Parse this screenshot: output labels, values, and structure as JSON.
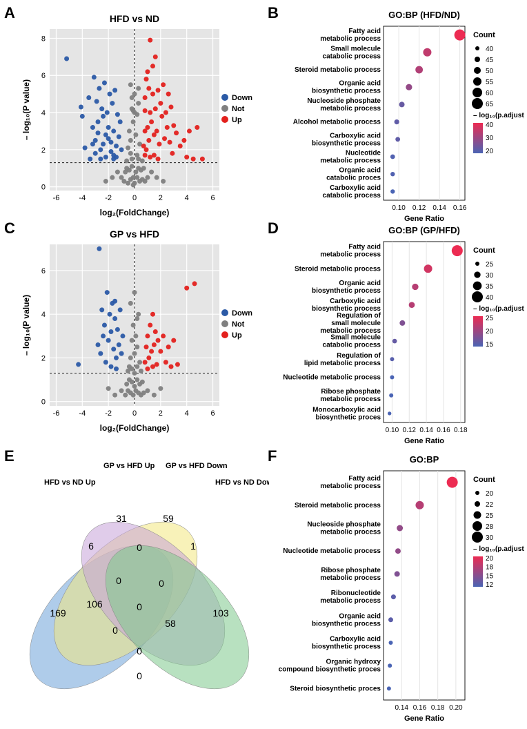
{
  "panelA": {
    "letter": "A",
    "title": "HFD vs ND",
    "xlabel": "log₂(FoldChange)",
    "ylabel": "– log₁₀(P value)",
    "xlim": [
      -6.5,
      6.5
    ],
    "ylim": [
      -0.2,
      8.5
    ],
    "xticks": [
      -6,
      -4,
      -2,
      0,
      2,
      4,
      6
    ],
    "yticks": [
      0,
      2,
      4,
      6,
      8
    ],
    "grid_color": "#ffffff",
    "background_color": "#e5e5e5",
    "threshold_y": 1.3,
    "threshold_x": 0,
    "colors": {
      "Down": "#2b5aa6",
      "Not": "#808080",
      "Up": "#e3211d"
    },
    "legend": [
      "Down",
      "Not",
      "Up"
    ],
    "points": {
      "Down": [
        [
          -5.2,
          6.9
        ],
        [
          -4.1,
          4.3
        ],
        [
          -4.0,
          3.8
        ],
        [
          -3.8,
          2.1
        ],
        [
          -3.5,
          4.8
        ],
        [
          -3.2,
          3.2
        ],
        [
          -3.1,
          5.9
        ],
        [
          -3.0,
          2.5
        ],
        [
          -2.9,
          4.6
        ],
        [
          -2.8,
          3.5
        ],
        [
          -2.7,
          5.3
        ],
        [
          -2.6,
          2.0
        ],
        [
          -2.5,
          4.2
        ],
        [
          -2.4,
          3.8
        ],
        [
          -2.3,
          5.6
        ],
        [
          -2.2,
          2.8
        ],
        [
          -2.1,
          4.0
        ],
        [
          -2.0,
          3.2
        ],
        [
          -1.9,
          5.0
        ],
        [
          -1.8,
          2.4
        ],
        [
          -1.7,
          4.5
        ],
        [
          -1.6,
          3.0
        ],
        [
          -1.5,
          5.2
        ],
        [
          -1.4,
          2.2
        ],
        [
          -1.3,
          3.9
        ],
        [
          -1.2,
          2.7
        ],
        [
          -1.1,
          3.5
        ],
        [
          -1.0,
          2.0
        ],
        [
          -1.6,
          1.7
        ],
        [
          -2.2,
          1.6
        ],
        [
          -2.6,
          1.5
        ],
        [
          -3.0,
          1.8
        ],
        [
          -3.4,
          1.5
        ],
        [
          -1.8,
          1.9
        ],
        [
          -1.4,
          1.6
        ],
        [
          -2.0,
          2.6
        ],
        [
          -2.4,
          2.3
        ],
        [
          -2.8,
          2.9
        ],
        [
          -3.2,
          2.3
        ],
        [
          -1.6,
          1.5
        ]
      ],
      "Not": [
        [
          -0.8,
          0.3
        ],
        [
          -0.7,
          0.8
        ],
        [
          -0.6,
          1.0
        ],
        [
          -0.5,
          0.2
        ],
        [
          -0.4,
          0.9
        ],
        [
          -0.3,
          0.4
        ],
        [
          -0.2,
          1.1
        ],
        [
          -0.1,
          0.5
        ],
        [
          0.0,
          0.2
        ],
        [
          0.1,
          0.8
        ],
        [
          0.2,
          0.5
        ],
        [
          0.3,
          1.0
        ],
        [
          0.4,
          0.3
        ],
        [
          0.5,
          0.9
        ],
        [
          0.6,
          0.4
        ],
        [
          0.7,
          1.0
        ],
        [
          0.8,
          0.3
        ],
        [
          -0.5,
          2.1
        ],
        [
          -0.4,
          3.0
        ],
        [
          -0.3,
          2.5
        ],
        [
          -0.2,
          4.2
        ],
        [
          -0.1,
          3.5
        ],
        [
          0.0,
          5.0
        ],
        [
          0.1,
          2.8
        ],
        [
          0.2,
          3.9
        ],
        [
          0.3,
          4.5
        ],
        [
          0.4,
          2.3
        ],
        [
          -0.2,
          1.5
        ],
        [
          0.2,
          1.7
        ],
        [
          -0.3,
          1.8
        ],
        [
          0.3,
          1.5
        ],
        [
          -0.6,
          1.4
        ],
        [
          0.6,
          1.4
        ],
        [
          -1.0,
          0.5
        ],
        [
          1.0,
          0.5
        ],
        [
          -1.3,
          0.8
        ],
        [
          1.3,
          0.8
        ],
        [
          -1.7,
          0.5
        ],
        [
          1.7,
          0.5
        ],
        [
          -2.2,
          0.3
        ],
        [
          2.2,
          0.3
        ],
        [
          -0.1,
          0.1
        ],
        [
          0.0,
          4.0
        ],
        [
          -0.3,
          5.5
        ],
        [
          0.3,
          5.3
        ],
        [
          -0.2,
          4.8
        ],
        [
          -0.1,
          4.1
        ]
      ],
      "Up": [
        [
          0.9,
          2.0
        ],
        [
          1.0,
          3.2
        ],
        [
          1.1,
          2.5
        ],
        [
          1.2,
          4.0
        ],
        [
          1.3,
          3.5
        ],
        [
          1.4,
          5.0
        ],
        [
          1.5,
          2.8
        ],
        [
          1.6,
          4.2
        ],
        [
          1.7,
          3.0
        ],
        [
          1.8,
          5.2
        ],
        [
          1.9,
          2.3
        ],
        [
          2.0,
          4.5
        ],
        [
          2.1,
          3.8
        ],
        [
          2.2,
          5.5
        ],
        [
          2.3,
          2.6
        ],
        [
          2.4,
          4.0
        ],
        [
          2.5,
          3.2
        ],
        [
          2.6,
          5.0
        ],
        [
          2.7,
          2.4
        ],
        [
          2.8,
          4.3
        ],
        [
          2.9,
          1.8
        ],
        [
          3.0,
          3.3
        ],
        [
          3.2,
          2.9
        ],
        [
          3.5,
          2.2
        ],
        [
          3.8,
          2.5
        ],
        [
          4.0,
          1.6
        ],
        [
          4.2,
          3.0
        ],
        [
          4.5,
          1.5
        ],
        [
          4.8,
          3.2
        ],
        [
          5.2,
          1.5
        ],
        [
          1.2,
          1.6
        ],
        [
          1.5,
          1.7
        ],
        [
          1.8,
          1.5
        ],
        [
          0.8,
          4.8
        ],
        [
          0.9,
          5.8
        ],
        [
          1.0,
          6.2
        ],
        [
          1.1,
          5.3
        ],
        [
          0.8,
          3.0
        ],
        [
          0.8,
          4.1
        ],
        [
          1.6,
          7.0
        ],
        [
          1.2,
          7.9
        ],
        [
          1.4,
          6.5
        ],
        [
          0.7,
          2.2
        ],
        [
          0.8,
          1.7
        ]
      ]
    }
  },
  "panelB": {
    "letter": "B",
    "title": "GO:BP (HFD/ND)",
    "xlabel": "Gene Ratio",
    "xlim": [
      0.085,
      0.165
    ],
    "xticks": [
      0.1,
      0.12,
      0.14,
      0.16
    ],
    "count_legend": {
      "label": "Count",
      "values": [
        40,
        45,
        50,
        55,
        60,
        65
      ]
    },
    "color_legend": {
      "label": "– log₁₀(p.adjust)",
      "values": [
        40,
        30,
        20
      ],
      "low": "#4a64b4",
      "high": "#ec2b52"
    },
    "terms": [
      {
        "label": "Fatty acid\nmetabolic process",
        "x": 0.16,
        "count": 65,
        "logp": 40
      },
      {
        "label": "Small molecule\ncatabolic process",
        "x": 0.128,
        "count": 55,
        "logp": 34
      },
      {
        "label": "Steroid metabolic process",
        "x": 0.12,
        "count": 52,
        "logp": 32
      },
      {
        "label": "Organic acid\nbiosynthetic process",
        "x": 0.11,
        "count": 48,
        "logp": 28
      },
      {
        "label": "Nucleoside phosphate\nmetabolic process",
        "x": 0.103,
        "count": 45,
        "logp": 22
      },
      {
        "label": "Alcohol metabolic process",
        "x": 0.098,
        "count": 43,
        "logp": 21
      },
      {
        "label": "Carboxylic acid\nbiosynthetic process",
        "x": 0.099,
        "count": 42,
        "logp": 21
      },
      {
        "label": "Nucleotide\nmetabolic process",
        "x": 0.094,
        "count": 42,
        "logp": 19
      },
      {
        "label": "Organic acid\ncatabolic proces",
        "x": 0.094,
        "count": 41,
        "logp": 19
      },
      {
        "label": "Carboxylic acid\ncatabolic process",
        "x": 0.094,
        "count": 41,
        "logp": 18
      }
    ]
  },
  "panelC": {
    "letter": "C",
    "title": "GP vs HFD",
    "xlabel": "log₂(FoldChange)",
    "ylabel": "– log₁₀(P value)",
    "xlim": [
      -6.5,
      6.5
    ],
    "ylim": [
      -0.2,
      7.2
    ],
    "xticks": [
      -6,
      -4,
      -2,
      0,
      2,
      4,
      6
    ],
    "yticks": [
      0,
      2,
      4,
      6
    ],
    "grid_color": "#ffffff",
    "background_color": "#e5e5e5",
    "threshold_y": 1.3,
    "colors": {
      "Down": "#2b5aa6",
      "Not": "#808080",
      "Up": "#e3211d"
    },
    "legend": [
      "Down",
      "Not",
      "Up"
    ],
    "points": {
      "Down": [
        [
          -4.3,
          1.7
        ],
        [
          -2.7,
          7.0
        ],
        [
          -2.5,
          4.2
        ],
        [
          -2.3,
          3.5
        ],
        [
          -2.1,
          5.0
        ],
        [
          -2.0,
          2.8
        ],
        [
          -1.9,
          4.0
        ],
        [
          -1.8,
          3.2
        ],
        [
          -1.7,
          4.5
        ],
        [
          -1.6,
          2.4
        ],
        [
          -1.5,
          3.8
        ],
        [
          -1.4,
          2.0
        ],
        [
          -1.3,
          3.3
        ],
        [
          -1.2,
          2.6
        ],
        [
          -1.1,
          4.2
        ],
        [
          -1.0,
          2.2
        ],
        [
          -0.9,
          3.0
        ],
        [
          -2.2,
          1.8
        ],
        [
          -1.8,
          1.6
        ],
        [
          -1.4,
          1.5
        ],
        [
          -2.6,
          2.2
        ],
        [
          -2.8,
          2.6
        ],
        [
          -2.4,
          3.0
        ],
        [
          -1.5,
          4.6
        ]
      ],
      "Not": [
        [
          -0.7,
          0.3
        ],
        [
          -0.6,
          0.8
        ],
        [
          -0.5,
          0.5
        ],
        [
          -0.4,
          1.0
        ],
        [
          -0.3,
          0.4
        ],
        [
          -0.2,
          0.9
        ],
        [
          -0.1,
          0.3
        ],
        [
          0.0,
          0.7
        ],
        [
          0.1,
          0.5
        ],
        [
          0.2,
          1.0
        ],
        [
          0.3,
          0.4
        ],
        [
          0.4,
          0.8
        ],
        [
          0.5,
          0.3
        ],
        [
          0.6,
          0.9
        ],
        [
          0.7,
          0.4
        ],
        [
          -0.3,
          2.0
        ],
        [
          -0.2,
          2.8
        ],
        [
          -0.1,
          3.5
        ],
        [
          0.0,
          2.2
        ],
        [
          0.1,
          3.0
        ],
        [
          0.2,
          2.5
        ],
        [
          0.3,
          4.0
        ],
        [
          0.4,
          1.8
        ],
        [
          -0.5,
          1.4
        ],
        [
          0.5,
          1.4
        ],
        [
          -1.0,
          0.5
        ],
        [
          1.0,
          0.5
        ],
        [
          -1.5,
          0.3
        ],
        [
          1.5,
          0.3
        ],
        [
          -2.0,
          0.6
        ],
        [
          2.0,
          0.6
        ],
        [
          -0.2,
          1.5
        ],
        [
          0.2,
          1.6
        ],
        [
          -0.4,
          1.6
        ],
        [
          0.0,
          1.3
        ],
        [
          -0.3,
          4.5
        ],
        [
          0.0,
          5.0
        ],
        [
          0.2,
          3.8
        ]
      ],
      "Up": [
        [
          0.8,
          1.8
        ],
        [
          0.9,
          2.5
        ],
        [
          1.0,
          3.0
        ],
        [
          1.1,
          2.0
        ],
        [
          1.2,
          3.5
        ],
        [
          1.3,
          2.3
        ],
        [
          1.4,
          4.0
        ],
        [
          1.5,
          2.6
        ],
        [
          1.6,
          3.2
        ],
        [
          1.7,
          1.7
        ],
        [
          1.8,
          2.8
        ],
        [
          2.0,
          2.3
        ],
        [
          2.2,
          3.0
        ],
        [
          2.4,
          1.8
        ],
        [
          2.6,
          2.5
        ],
        [
          2.8,
          1.6
        ],
        [
          3.0,
          2.8
        ],
        [
          3.3,
          1.7
        ],
        [
          4.0,
          5.2
        ],
        [
          4.6,
          5.4
        ],
        [
          1.0,
          1.5
        ],
        [
          1.4,
          1.6
        ]
      ]
    }
  },
  "panelD": {
    "letter": "D",
    "title": "GO:BP (GP/HFD)",
    "xlabel": "Gene Ratio",
    "xlim": [
      0.09,
      0.185
    ],
    "xticks": [
      0.1,
      0.12,
      0.14,
      0.16,
      0.18
    ],
    "count_legend": {
      "label": "Count",
      "values": [
        25,
        30,
        35,
        40
      ]
    },
    "color_legend": {
      "label": "– log₁₀(p.adjust)",
      "values": [
        25,
        20,
        15
      ],
      "low": "#4a64b4",
      "high": "#ec2b52"
    },
    "terms": [
      {
        "label": "Fatty acid\nmetabolic process",
        "x": 0.176,
        "count": 40,
        "logp": 26
      },
      {
        "label": "Steroid metabolic process",
        "x": 0.142,
        "count": 34,
        "logp": 24
      },
      {
        "label": "Organic acid\nbiosynthetic process",
        "x": 0.127,
        "count": 30,
        "logp": 22
      },
      {
        "label": "Carboxylic acid\nbiosynthetic process",
        "x": 0.123,
        "count": 29,
        "logp": 22
      },
      {
        "label": "Regulation of\nsmall molecule\nmetabolic process",
        "x": 0.112,
        "count": 28,
        "logp": 18
      },
      {
        "label": "Small molecule\ncatabolic process",
        "x": 0.103,
        "count": 26,
        "logp": 16
      },
      {
        "label": "Regulation of\nlipid metabolic process",
        "x": 0.1,
        "count": 25,
        "logp": 15
      },
      {
        "label": "Nucleotide metabolic process",
        "x": 0.1,
        "count": 25,
        "logp": 14
      },
      {
        "label": "Ribose phosphate\nmetabolic process",
        "x": 0.099,
        "count": 25,
        "logp": 14
      },
      {
        "label": "Monocarboxylic acid\nbiosynthetic proces",
        "x": 0.097,
        "count": 24,
        "logp": 14
      }
    ]
  },
  "panelE": {
    "letter": "E",
    "set_labels": [
      "HFD vs ND Up",
      "GP vs HFD Up",
      "GP vs HFD Down",
      "HFD vs ND Down"
    ],
    "set_colors": [
      "#6ea3d9",
      "#f2e87f",
      "#c7a3d9",
      "#7dc98c"
    ],
    "region_values": {
      "A_only": "169",
      "B_only": "31",
      "C_only": "59",
      "D_only": "103",
      "AB": "6",
      "AC": "106",
      "AD": "0",
      "BC": "0",
      "BD": "58",
      "CD": "1",
      "ABC": "0",
      "ABD": "0",
      "ACD": "0",
      "BCD": "0",
      "ABCD": "0"
    }
  },
  "panelF": {
    "letter": "F",
    "title": "GO:BP",
    "xlabel": "Gene Ratio",
    "xlim": [
      0.12,
      0.21
    ],
    "xticks": [
      0.14,
      0.16,
      0.18,
      0.2
    ],
    "count_legend": {
      "label": "Count",
      "values": [
        20,
        22,
        25,
        28,
        30
      ]
    },
    "color_legend": {
      "label": "– log₁₀(p.adjust)",
      "values": [
        20,
        18,
        15,
        12
      ],
      "low": "#4a64b4",
      "high": "#ec2b52"
    },
    "terms": [
      {
        "label": "Fatty acid\nmetabolic process",
        "x": 0.196,
        "count": 30,
        "logp": 21
      },
      {
        "label": "Steroid metabolic process",
        "x": 0.16,
        "count": 26,
        "logp": 18
      },
      {
        "label": "Nucleoside phosphate\nmetabolic process",
        "x": 0.138,
        "count": 23,
        "logp": 16
      },
      {
        "label": "Nucleotide metabolic process",
        "x": 0.136,
        "count": 22,
        "logp": 16
      },
      {
        "label": "Ribose phosphate\nmetabolic process",
        "x": 0.135,
        "count": 22,
        "logp": 15
      },
      {
        "label": "Ribonucleotide\nmetabolic process",
        "x": 0.131,
        "count": 21,
        "logp": 13
      },
      {
        "label": "Organic acid\nbiosynthetic process",
        "x": 0.128,
        "count": 21,
        "logp": 13
      },
      {
        "label": "Carboxylic acid\nbiosynthetic process",
        "x": 0.128,
        "count": 20,
        "logp": 12
      },
      {
        "label": "Organic hydroxy\ncompound biosynthetic proces",
        "x": 0.127,
        "count": 20,
        "logp": 12
      },
      {
        "label": "Steroid biosynthetic proces",
        "x": 0.126,
        "count": 20,
        "logp": 12
      }
    ]
  }
}
